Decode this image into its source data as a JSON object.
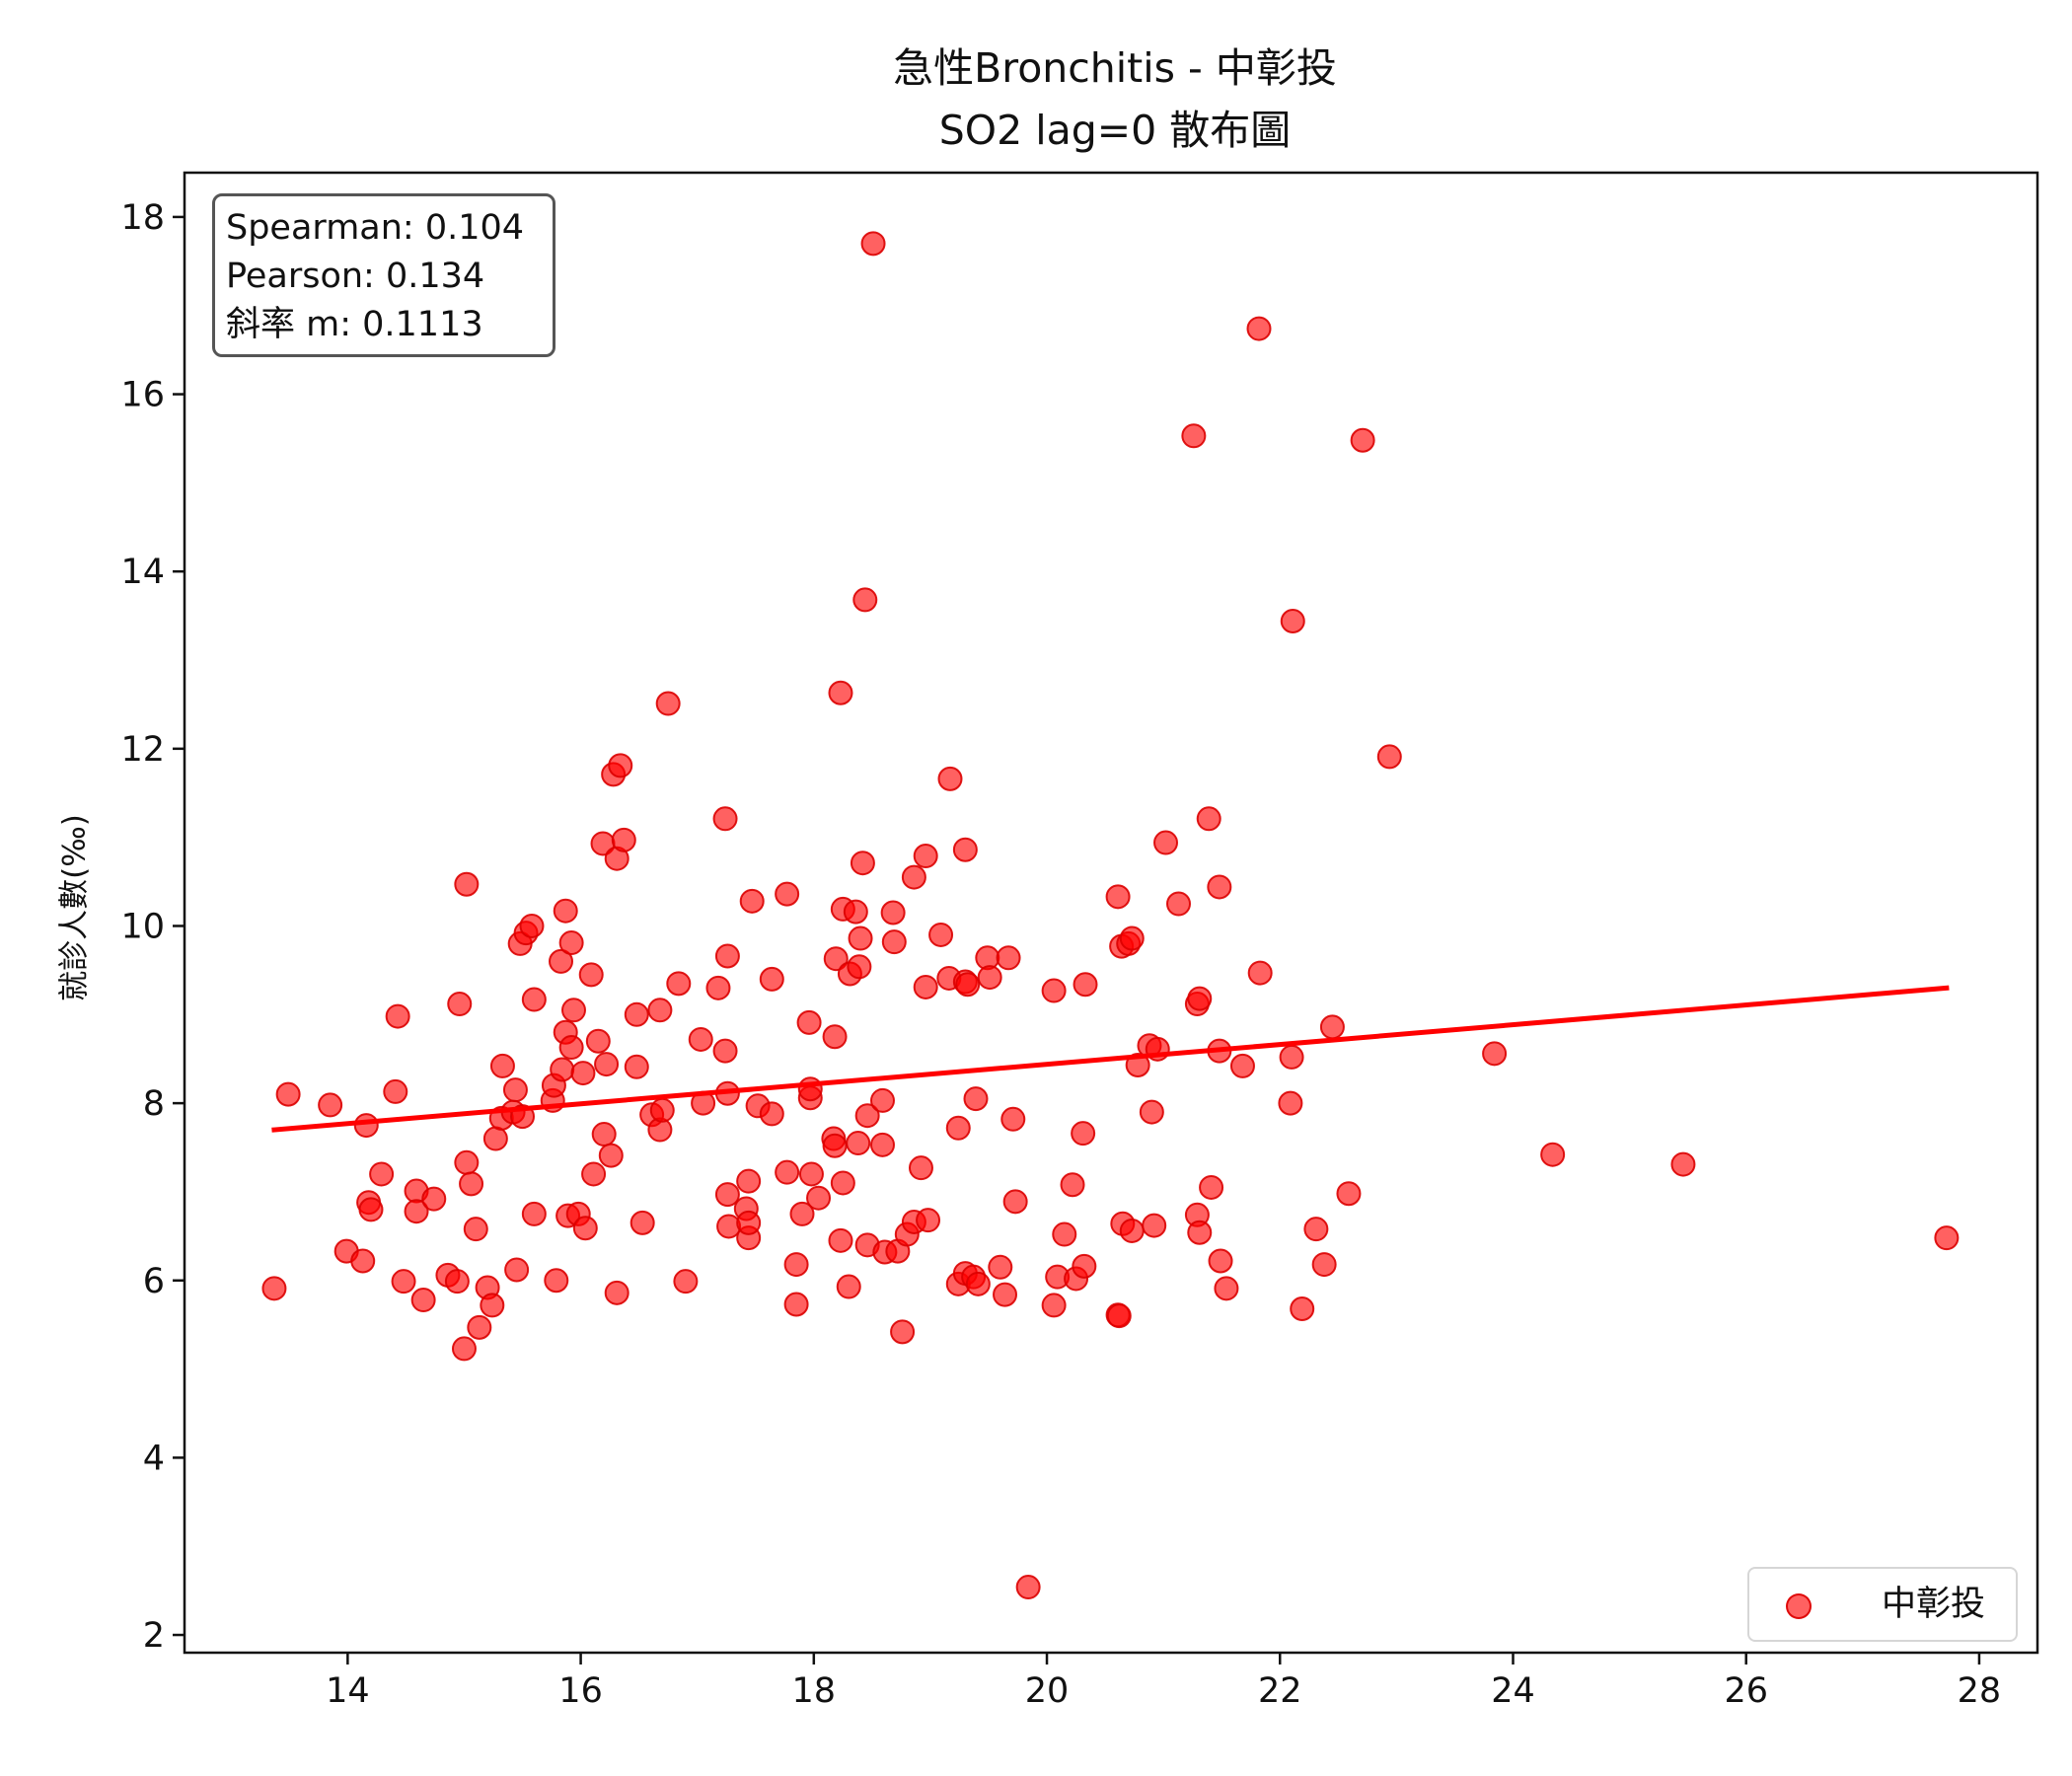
{
  "chart_data": {
    "type": "scatter",
    "title": "急性Bronchitis - 中彰投",
    "subtitle": "SO2 lag=0 散布圖",
    "xlabel": "",
    "ylabel": "就診人數(‰)",
    "xlim": [
      12.6,
      28.5
    ],
    "ylim": [
      1.8,
      18.5
    ],
    "xticks": [
      14,
      16,
      18,
      20,
      22,
      24,
      26,
      28
    ],
    "yticks": [
      2,
      4,
      6,
      8,
      10,
      12,
      14,
      16,
      18
    ],
    "grid": false,
    "legend_position": "bottom-right",
    "stats": [
      "Spearman: 0.104",
      "Pearson: 0.134",
      "斜率 m: 0.1113"
    ],
    "colors": {
      "points": "#ff0000",
      "line": "#ff0000"
    },
    "series": [
      {
        "name": "中彰投",
        "points": [
          [
            13.37,
            5.91
          ],
          [
            13.49,
            8.1
          ],
          [
            13.85,
            7.98
          ],
          [
            13.99,
            6.33
          ],
          [
            14.13,
            6.22
          ],
          [
            14.16,
            7.75
          ],
          [
            14.18,
            6.88
          ],
          [
            14.2,
            6.8
          ],
          [
            14.29,
            7.2
          ],
          [
            14.41,
            8.13
          ],
          [
            14.43,
            8.98
          ],
          [
            14.48,
            5.99
          ],
          [
            14.59,
            7.01
          ],
          [
            14.59,
            6.78
          ],
          [
            14.65,
            5.78
          ],
          [
            14.74,
            6.92
          ],
          [
            14.86,
            6.06
          ],
          [
            14.94,
            5.99
          ],
          [
            14.96,
            9.12
          ],
          [
            15.0,
            5.23
          ],
          [
            15.02,
            10.47
          ],
          [
            15.02,
            7.33
          ],
          [
            15.06,
            7.09
          ],
          [
            15.1,
            6.58
          ],
          [
            15.13,
            5.47
          ],
          [
            15.2,
            5.92
          ],
          [
            15.24,
            5.72
          ],
          [
            15.27,
            7.6
          ],
          [
            15.33,
            8.42
          ],
          [
            15.32,
            7.83
          ],
          [
            15.44,
            8.15
          ],
          [
            15.42,
            7.9
          ],
          [
            15.45,
            6.12
          ],
          [
            15.48,
            9.8
          ],
          [
            15.5,
            7.85
          ],
          [
            15.53,
            9.92
          ],
          [
            15.58,
            10.0
          ],
          [
            15.6,
            9.17
          ],
          [
            15.6,
            6.75
          ],
          [
            15.76,
            8.03
          ],
          [
            15.77,
            8.2
          ],
          [
            15.79,
            6.0
          ],
          [
            15.83,
            9.6
          ],
          [
            15.84,
            8.38
          ],
          [
            15.87,
            8.8
          ],
          [
            15.87,
            10.17
          ],
          [
            15.89,
            6.73
          ],
          [
            15.92,
            9.81
          ],
          [
            15.92,
            8.63
          ],
          [
            15.94,
            9.05
          ],
          [
            15.98,
            6.75
          ],
          [
            16.02,
            8.34
          ],
          [
            16.04,
            6.59
          ],
          [
            16.09,
            9.45
          ],
          [
            16.11,
            7.2
          ],
          [
            16.15,
            8.7
          ],
          [
            16.19,
            10.93
          ],
          [
            16.2,
            7.65
          ],
          [
            16.22,
            8.44
          ],
          [
            16.26,
            7.41
          ],
          [
            16.28,
            11.71
          ],
          [
            16.31,
            5.86
          ],
          [
            16.31,
            10.76
          ],
          [
            16.34,
            11.81
          ],
          [
            16.37,
            10.97
          ],
          [
            16.48,
            9.0
          ],
          [
            16.48,
            8.41
          ],
          [
            16.53,
            6.65
          ],
          [
            16.61,
            7.87
          ],
          [
            16.68,
            9.05
          ],
          [
            16.68,
            7.7
          ],
          [
            16.7,
            7.92
          ],
          [
            16.75,
            12.51
          ],
          [
            16.84,
            9.35
          ],
          [
            16.9,
            5.99
          ],
          [
            17.03,
            8.72
          ],
          [
            17.05,
            8.0
          ],
          [
            17.18,
            9.3
          ],
          [
            17.24,
            11.21
          ],
          [
            17.26,
            9.66
          ],
          [
            17.24,
            8.59
          ],
          [
            17.26,
            8.11
          ],
          [
            17.26,
            6.97
          ],
          [
            17.27,
            6.61
          ],
          [
            17.42,
            6.81
          ],
          [
            17.44,
            6.48
          ],
          [
            17.44,
            6.65
          ],
          [
            17.44,
            7.12
          ],
          [
            17.47,
            10.28
          ],
          [
            17.52,
            7.97
          ],
          [
            17.64,
            9.4
          ],
          [
            17.64,
            7.88
          ],
          [
            17.77,
            10.36
          ],
          [
            17.77,
            7.22
          ],
          [
            17.85,
            6.18
          ],
          [
            17.85,
            5.73
          ],
          [
            17.9,
            6.75
          ],
          [
            17.96,
            8.91
          ],
          [
            17.97,
            8.06
          ],
          [
            17.97,
            8.16
          ],
          [
            17.98,
            7.2
          ],
          [
            18.04,
            6.93
          ],
          [
            18.17,
            7.6
          ],
          [
            18.18,
            8.75
          ],
          [
            18.19,
            9.63
          ],
          [
            18.18,
            7.52
          ],
          [
            18.23,
            12.63
          ],
          [
            18.23,
            6.45
          ],
          [
            18.25,
            10.19
          ],
          [
            18.25,
            7.1
          ],
          [
            18.3,
            5.93
          ],
          [
            18.31,
            9.46
          ],
          [
            18.36,
            10.16
          ],
          [
            18.38,
            7.55
          ],
          [
            18.39,
            9.54
          ],
          [
            18.4,
            9.86
          ],
          [
            18.42,
            10.71
          ],
          [
            18.44,
            13.68
          ],
          [
            18.46,
            6.4
          ],
          [
            18.46,
            7.86
          ],
          [
            18.51,
            17.7
          ],
          [
            18.59,
            8.03
          ],
          [
            18.59,
            7.53
          ],
          [
            18.61,
            6.32
          ],
          [
            18.68,
            10.15
          ],
          [
            18.69,
            9.82
          ],
          [
            18.72,
            6.33
          ],
          [
            18.76,
            5.42
          ],
          [
            18.8,
            6.52
          ],
          [
            18.86,
            10.55
          ],
          [
            18.86,
            6.66
          ],
          [
            18.92,
            7.27
          ],
          [
            18.96,
            10.79
          ],
          [
            18.96,
            9.31
          ],
          [
            18.98,
            6.68
          ],
          [
            19.09,
            9.9
          ],
          [
            19.16,
            9.41
          ],
          [
            19.17,
            11.66
          ],
          [
            19.24,
            5.96
          ],
          [
            19.24,
            7.72
          ],
          [
            19.3,
            9.37
          ],
          [
            19.3,
            10.86
          ],
          [
            19.32,
            9.34
          ],
          [
            19.3,
            6.08
          ],
          [
            19.37,
            6.04
          ],
          [
            19.39,
            8.05
          ],
          [
            19.41,
            5.96
          ],
          [
            19.49,
            9.64
          ],
          [
            19.51,
            9.42
          ],
          [
            19.6,
            6.15
          ],
          [
            19.64,
            5.84
          ],
          [
            19.67,
            9.64
          ],
          [
            19.71,
            7.82
          ],
          [
            19.73,
            6.89
          ],
          [
            19.84,
            2.54
          ],
          [
            20.06,
            9.27
          ],
          [
            20.06,
            5.72
          ],
          [
            20.09,
            6.04
          ],
          [
            20.15,
            6.52
          ],
          [
            20.22,
            7.08
          ],
          [
            20.25,
            6.02
          ],
          [
            20.31,
            7.66
          ],
          [
            20.32,
            6.16
          ],
          [
            20.33,
            9.34
          ],
          [
            20.61,
            10.33
          ],
          [
            20.61,
            5.61
          ],
          [
            20.62,
            5.6
          ],
          [
            20.64,
            9.77
          ],
          [
            20.65,
            6.64
          ],
          [
            20.7,
            9.8
          ],
          [
            20.73,
            9.86
          ],
          [
            20.73,
            6.56
          ],
          [
            20.78,
            8.43
          ],
          [
            20.88,
            8.65
          ],
          [
            20.9,
            7.9
          ],
          [
            20.92,
            6.62
          ],
          [
            20.95,
            8.61
          ],
          [
            21.02,
            10.94
          ],
          [
            21.13,
            10.25
          ],
          [
            21.26,
            15.53
          ],
          [
            21.29,
            9.12
          ],
          [
            21.31,
            9.18
          ],
          [
            21.29,
            6.74
          ],
          [
            21.31,
            6.54
          ],
          [
            21.39,
            11.21
          ],
          [
            21.41,
            7.05
          ],
          [
            21.48,
            10.44
          ],
          [
            21.48,
            8.59
          ],
          [
            21.49,
            6.22
          ],
          [
            21.54,
            5.91
          ],
          [
            21.68,
            8.42
          ],
          [
            21.83,
            9.47
          ],
          [
            21.82,
            16.74
          ],
          [
            22.09,
            8.0
          ],
          [
            22.1,
            8.52
          ],
          [
            22.11,
            13.44
          ],
          [
            22.19,
            5.68
          ],
          [
            22.31,
            6.58
          ],
          [
            22.38,
            6.18
          ],
          [
            22.45,
            8.86
          ],
          [
            22.59,
            6.98
          ],
          [
            22.71,
            15.48
          ],
          [
            22.94,
            11.91
          ],
          [
            23.84,
            8.56
          ],
          [
            24.34,
            7.42
          ],
          [
            25.46,
            7.31
          ],
          [
            27.72,
            6.48
          ]
        ]
      }
    ],
    "regression": {
      "label": "斜率 m: 0.1113",
      "x": [
        13.37,
        27.72
      ],
      "y": [
        7.7,
        9.3
      ]
    }
  }
}
